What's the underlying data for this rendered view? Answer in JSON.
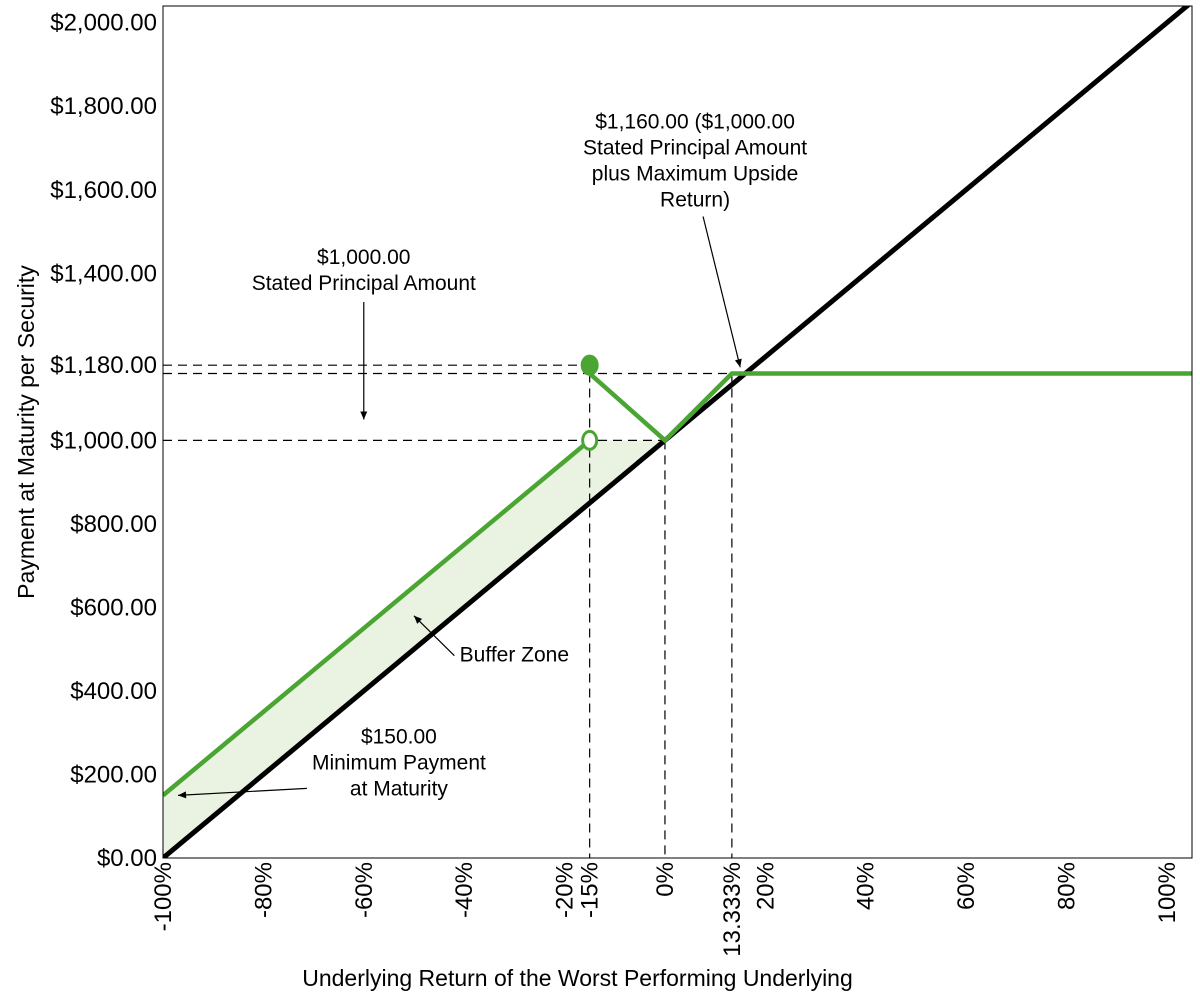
{
  "chart_data": {
    "type": "line",
    "title": "",
    "xlabel": "Underlying Return of the Worst Performing Underlying",
    "ylabel": "Payment at Maturity per Security",
    "xlim": [
      -100,
      105
    ],
    "ylim": [
      0,
      2040
    ],
    "x_ticks": [
      {
        "value": -100,
        "label": "-100%"
      },
      {
        "value": -80,
        "label": "-80%"
      },
      {
        "value": -60,
        "label": "-60%"
      },
      {
        "value": -40,
        "label": "-40%"
      },
      {
        "value": -20,
        "label": "-20%"
      },
      {
        "value": -15,
        "label": "-15%"
      },
      {
        "value": 0,
        "label": "0%"
      },
      {
        "value": 13.333,
        "label": "13.333%"
      },
      {
        "value": 20,
        "label": "20%"
      },
      {
        "value": 40,
        "label": "40%"
      },
      {
        "value": 60,
        "label": "60%"
      },
      {
        "value": 80,
        "label": "80%"
      },
      {
        "value": 100,
        "label": "100%"
      }
    ],
    "y_ticks": [
      {
        "value": 0,
        "label": "$0.00"
      },
      {
        "value": 200,
        "label": "$200.00"
      },
      {
        "value": 400,
        "label": "$400.00"
      },
      {
        "value": 600,
        "label": "$600.00"
      },
      {
        "value": 800,
        "label": "$800.00"
      },
      {
        "value": 1000,
        "label": "$1,000.00"
      },
      {
        "value": 1180,
        "label": "$1,180.00"
      },
      {
        "value": 1400,
        "label": "$1,400.00"
      },
      {
        "value": 1600,
        "label": "$1,600.00"
      },
      {
        "value": 1800,
        "label": "$1,800.00"
      },
      {
        "value": 2000,
        "label": "$2,000.00"
      }
    ],
    "series": [
      {
        "role": "underlying",
        "color": "#000000",
        "x": [
          -100,
          105
        ],
        "y": [
          0,
          2050
        ]
      },
      {
        "role": "payoff-buffer-region",
        "color": "#4aa532",
        "x": [
          -100,
          -15
        ],
        "y": [
          150,
          1000
        ]
      },
      {
        "role": "payoff-upside-region",
        "color": "#4aa532",
        "x": [
          -15,
          0,
          13.333,
          105
        ],
        "y": [
          1160,
          1000,
          1160,
          1160
        ]
      }
    ],
    "markers": [
      {
        "x": -15,
        "y": 1180,
        "style": "filled",
        "color": "#4aa532"
      },
      {
        "x": -15,
        "y": 1000,
        "style": "open",
        "color": "#4aa532"
      }
    ],
    "reference_lines": {
      "horizontal": [
        {
          "y": 1180,
          "x_end": -15
        },
        {
          "y": 1160,
          "x_end": 13.333
        },
        {
          "y": 1000,
          "x_end": 0
        }
      ],
      "vertical": [
        {
          "x": -15,
          "y_top": 1160
        },
        {
          "x": 0,
          "y_top": 1000
        },
        {
          "x": 13.333,
          "y_top": 1160
        }
      ]
    },
    "shaded_region": {
      "name": "Buffer Zone",
      "color": "#eaf3e1",
      "x": [
        -100,
        -15,
        0
      ],
      "y_upper": [
        150,
        1000,
        1000
      ],
      "y_lower": [
        0,
        850,
        1000
      ]
    },
    "annotations": [
      {
        "lines": [
          "$1,000.00",
          "Stated Principal Amount"
        ],
        "anchor": {
          "x": -60,
          "y": 1360
        },
        "arrow_to": {
          "x": -60,
          "y": 1050
        }
      },
      {
        "lines": [
          "$1,160.00 ($1,000.00",
          "Stated Principal Amount",
          "plus Maximum Upside",
          "Return)"
        ],
        "anchor": {
          "x": 6,
          "y": 1560
        },
        "arrow_to": {
          "x": 15,
          "y": 1175
        }
      },
      {
        "lines": [
          "Buffer Zone"
        ],
        "anchor": {
          "x": -30,
          "y": 470
        },
        "arrow_to": {
          "x": -50,
          "y": 580
        }
      },
      {
        "lines": [
          "$150.00",
          "Minimum Payment",
          "at Maturity"
        ],
        "anchor": {
          "x": -53,
          "y": 150
        },
        "arrow_to": {
          "x": -97,
          "y": 150
        }
      }
    ]
  }
}
